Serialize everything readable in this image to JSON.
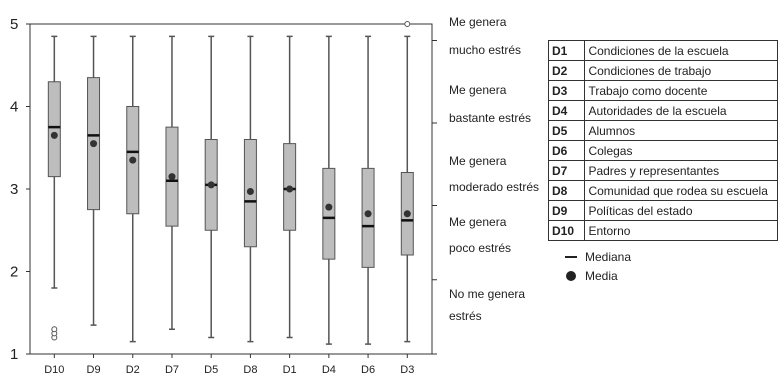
{
  "chart_data": {
    "type": "box",
    "categories": [
      "D10",
      "D9",
      "D2",
      "D7",
      "D5",
      "D8",
      "D1",
      "D4",
      "D6",
      "D3"
    ],
    "series": [
      {
        "category": "D10",
        "min": 1.8,
        "q1": 3.15,
        "median": 3.75,
        "q3": 4.3,
        "max": 4.85,
        "mean": 3.65,
        "outliers": [
          1.2,
          1.25,
          1.3
        ]
      },
      {
        "category": "D9",
        "min": 1.35,
        "q1": 2.75,
        "median": 3.65,
        "q3": 4.35,
        "max": 4.85,
        "mean": 3.55,
        "outliers": []
      },
      {
        "category": "D2",
        "min": 1.15,
        "q1": 2.7,
        "median": 3.45,
        "q3": 4.0,
        "max": 4.85,
        "mean": 3.35,
        "outliers": []
      },
      {
        "category": "D7",
        "min": 1.3,
        "q1": 2.55,
        "median": 3.1,
        "q3": 3.75,
        "max": 4.85,
        "mean": 3.15,
        "outliers": []
      },
      {
        "category": "D5",
        "min": 1.2,
        "q1": 2.5,
        "median": 3.05,
        "q3": 3.6,
        "max": 4.85,
        "mean": 3.05,
        "outliers": []
      },
      {
        "category": "D8",
        "min": 1.15,
        "q1": 2.3,
        "median": 2.85,
        "q3": 3.6,
        "max": 4.85,
        "mean": 2.97,
        "outliers": []
      },
      {
        "category": "D1",
        "min": 1.2,
        "q1": 2.5,
        "median": 3.0,
        "q3": 3.55,
        "max": 4.85,
        "mean": 3.0,
        "outliers": []
      },
      {
        "category": "D4",
        "min": 1.12,
        "q1": 2.15,
        "median": 2.65,
        "q3": 3.25,
        "max": 4.85,
        "mean": 2.78,
        "outliers": []
      },
      {
        "category": "D6",
        "min": 1.12,
        "q1": 2.05,
        "median": 2.55,
        "q3": 3.25,
        "max": 4.85,
        "mean": 2.7,
        "outliers": []
      },
      {
        "category": "D3",
        "min": 1.15,
        "q1": 2.2,
        "median": 2.62,
        "q3": 3.2,
        "max": 4.85,
        "mean": 2.7,
        "outliers": [
          5.0
        ]
      }
    ],
    "y_ticks": [
      "1",
      "2",
      "3",
      "4",
      "5"
    ],
    "ylim": [
      1,
      5
    ],
    "grid": false,
    "right_axis_labels": [
      {
        "line1": "Me genera",
        "line2": "mucho estrés"
      },
      {
        "line1": "Me genera",
        "line2": "bastante estrés"
      },
      {
        "line1": "Me genera",
        "line2": "moderado estrés"
      },
      {
        "line1": "Me genera",
        "line2": "poco estrés"
      },
      {
        "line1": "No me genera",
        "line2": "estrés"
      }
    ],
    "legend_table": [
      {
        "code": "D1",
        "label": "Condiciones de la escuela"
      },
      {
        "code": "D2",
        "label": "Condiciones de trabajo"
      },
      {
        "code": "D3",
        "label": "Trabajo como docente"
      },
      {
        "code": "D4",
        "label": "Autoridades de la escuela"
      },
      {
        "code": "D5",
        "label": "Alumnos"
      },
      {
        "code": "D6",
        "label": "Colegas"
      },
      {
        "code": "D7",
        "label": "Padres y representantes"
      },
      {
        "code": "D8",
        "label": "Comunidad que rodea su escuela"
      },
      {
        "code": "D9",
        "label": "Políticas del estado"
      },
      {
        "code": "D10",
        "label": "Entorno"
      }
    ],
    "legend_keys": {
      "median": "Mediana",
      "mean": "Media"
    },
    "colors": {
      "box": "#bdbdbd",
      "stroke": "#555555",
      "median": "#111111",
      "mean": "#333333"
    }
  }
}
